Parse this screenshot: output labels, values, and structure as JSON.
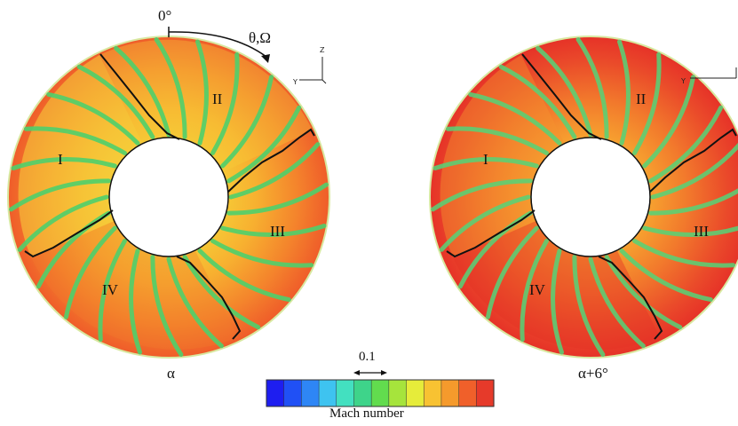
{
  "left_panel": {
    "caption": "α",
    "sectors": [
      "I",
      "II",
      "III",
      "IV"
    ],
    "angle_zero": "0°",
    "rotation_label": "θ,Ω",
    "axis_y": "Y",
    "axis_z": "Z"
  },
  "right_panel": {
    "caption": "α+6°",
    "sectors": [
      "I",
      "II",
      "III",
      "IV"
    ],
    "axis_y": "Y"
  },
  "colorbar": {
    "label": "Mach number",
    "spacing_label": "0.1",
    "colors": [
      "#1e1ef0",
      "#2050f5",
      "#2e86f5",
      "#3ec3f0",
      "#43e0c0",
      "#3ed48a",
      "#62dc4e",
      "#a6e43c",
      "#e6ec3a",
      "#f8c232",
      "#f59a2c",
      "#f0602a",
      "#e63a2a"
    ]
  }
}
